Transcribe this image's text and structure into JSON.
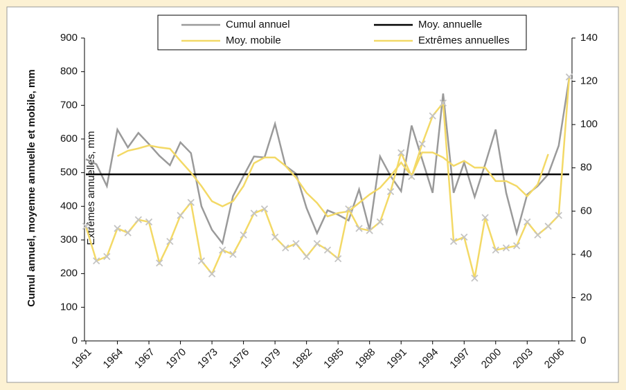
{
  "chart_data": {
    "type": "line",
    "ylabel": "Cumul annuel, moyenne annuelle et mobile, mm",
    "y2label": "Extrêmes annuelles, mm",
    "x": [
      1961,
      1962,
      1963,
      1964,
      1965,
      1966,
      1967,
      1968,
      1969,
      1970,
      1971,
      1972,
      1973,
      1974,
      1975,
      1976,
      1977,
      1978,
      1979,
      1980,
      1981,
      1982,
      1983,
      1984,
      1985,
      1986,
      1987,
      1988,
      1989,
      1990,
      1991,
      1992,
      1993,
      1994,
      1995,
      1996,
      1997,
      1998,
      1999,
      2000,
      2001,
      2002,
      2003,
      2004,
      2005,
      2006,
      2007
    ],
    "xlim": [
      1961,
      2007
    ],
    "xticks": [
      1961,
      1964,
      1967,
      1970,
      1973,
      1976,
      1979,
      1982,
      1985,
      1988,
      1991,
      1994,
      1997,
      2000,
      2003,
      2006
    ],
    "ylim": [
      0,
      900
    ],
    "yticks": [
      0,
      100,
      200,
      300,
      400,
      500,
      600,
      700,
      800,
      900
    ],
    "y2lim": [
      0,
      140
    ],
    "y2ticks": [
      0,
      20,
      40,
      60,
      80,
      100,
      120,
      140
    ],
    "series": [
      {
        "name": "Cumul annuel",
        "color": "#9a9a9a",
        "values": [
          540,
          525,
          460,
          628,
          575,
          618,
          585,
          550,
          522,
          590,
          558,
          400,
          330,
          290,
          430,
          490,
          548,
          545,
          645,
          520,
          497,
          395,
          320,
          388,
          375,
          358,
          450,
          330,
          548,
          490,
          445,
          640,
          540,
          440,
          735,
          440,
          530,
          428,
          525,
          628,
          440,
          320,
          435,
          460,
          495,
          580,
          782
        ]
      },
      {
        "name": "Moy. annuelle",
        "color": "#000000",
        "values": [
          495,
          495,
          495,
          495,
          495,
          495,
          495,
          495,
          495,
          495,
          495,
          495,
          495,
          495,
          495,
          495,
          495,
          495,
          495,
          495,
          495,
          495,
          495,
          495,
          495,
          495,
          495,
          495,
          495,
          495,
          495,
          495,
          495,
          495,
          495,
          495,
          495,
          495,
          495,
          495,
          495,
          495,
          495,
          495,
          495,
          495,
          495
        ]
      },
      {
        "name": "Moy. mobile",
        "color": "#f3d966",
        "values": [
          null,
          null,
          null,
          549,
          565,
          572,
          581,
          575,
          571,
          535,
          500,
          460,
          415,
          400,
          415,
          460,
          528,
          545,
          545,
          520,
          485,
          440,
          410,
          370,
          380,
          385,
          410,
          435,
          455,
          490,
          530,
          490,
          560,
          560,
          545,
          520,
          535,
          515,
          515,
          475,
          475,
          460,
          430,
          465,
          555,
          null,
          null
        ]
      },
      {
        "name": "Extrêmes annuelles",
        "color": "#f3d966",
        "axis": "y2",
        "marker": "x",
        "marker_color": "#c4c4c4",
        "values": [
          53,
          37,
          39,
          52,
          50,
          56,
          55,
          36,
          46,
          58,
          64,
          37,
          31,
          42,
          40,
          49,
          59,
          61,
          48,
          43,
          45,
          39,
          45,
          42,
          38,
          61,
          52,
          51,
          55,
          69,
          87,
          76,
          91,
          104,
          110,
          46,
          48,
          29,
          57,
          42,
          43,
          44,
          55,
          49,
          53,
          58,
          122
        ]
      }
    ]
  }
}
